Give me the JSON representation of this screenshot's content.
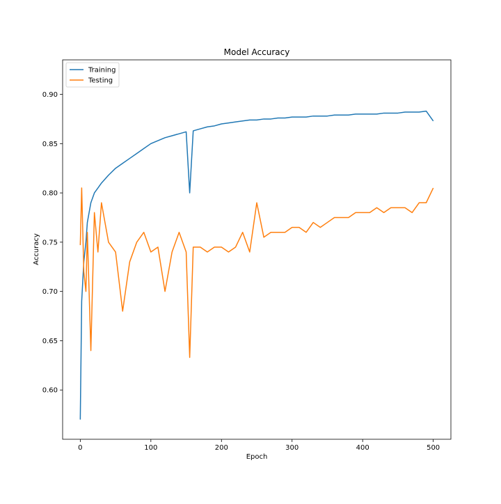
{
  "chart_data": {
    "type": "line",
    "title": "Model Accuracy",
    "xlabel": "Epoch",
    "ylabel": "Accuracy",
    "xlim": [
      -25,
      525
    ],
    "ylim": [
      0.55,
      0.935
    ],
    "xticks": [
      0,
      100,
      200,
      300,
      400,
      500
    ],
    "yticks": [
      0.6,
      0.65,
      0.7,
      0.75,
      0.8,
      0.85,
      0.9
    ],
    "xtick_labels": [
      "0",
      "100",
      "200",
      "300",
      "400",
      "500"
    ],
    "ytick_labels": [
      "0.60",
      "0.65",
      "0.70",
      "0.75",
      "0.80",
      "0.85",
      "0.90"
    ],
    "grid": false,
    "legend_position": "upper-left",
    "series": [
      {
        "name": "Training",
        "color": "#1f77b4",
        "x": [
          0,
          2,
          5,
          8,
          10,
          15,
          20,
          25,
          30,
          40,
          50,
          60,
          70,
          80,
          90,
          100,
          110,
          120,
          130,
          140,
          150,
          155,
          160,
          170,
          180,
          190,
          200,
          210,
          220,
          230,
          240,
          250,
          260,
          270,
          280,
          290,
          300,
          310,
          320,
          330,
          340,
          350,
          360,
          370,
          380,
          390,
          400,
          410,
          420,
          430,
          440,
          450,
          460,
          470,
          480,
          490,
          500
        ],
        "y": [
          0.57,
          0.69,
          0.73,
          0.75,
          0.77,
          0.79,
          0.8,
          0.805,
          0.81,
          0.818,
          0.825,
          0.83,
          0.835,
          0.84,
          0.845,
          0.85,
          0.853,
          0.856,
          0.858,
          0.86,
          0.862,
          0.8,
          0.863,
          0.865,
          0.867,
          0.868,
          0.87,
          0.871,
          0.872,
          0.873,
          0.874,
          0.874,
          0.875,
          0.875,
          0.876,
          0.876,
          0.877,
          0.877,
          0.877,
          0.878,
          0.878,
          0.878,
          0.879,
          0.879,
          0.879,
          0.88,
          0.88,
          0.88,
          0.88,
          0.881,
          0.881,
          0.881,
          0.882,
          0.882,
          0.882,
          0.883,
          0.873
        ]
      },
      {
        "name": "Testing",
        "color": "#ff7f0e",
        "x": [
          0,
          2,
          5,
          8,
          10,
          15,
          20,
          25,
          30,
          40,
          50,
          60,
          70,
          80,
          90,
          100,
          110,
          120,
          130,
          140,
          150,
          155,
          160,
          170,
          180,
          190,
          200,
          210,
          220,
          230,
          240,
          250,
          260,
          270,
          280,
          290,
          300,
          310,
          320,
          330,
          340,
          350,
          360,
          370,
          380,
          390,
          400,
          410,
          420,
          430,
          440,
          450,
          460,
          470,
          480,
          490,
          500
        ],
        "y": [
          0.747,
          0.805,
          0.72,
          0.7,
          0.76,
          0.64,
          0.78,
          0.74,
          0.79,
          0.75,
          0.74,
          0.68,
          0.73,
          0.75,
          0.76,
          0.74,
          0.745,
          0.7,
          0.74,
          0.76,
          0.74,
          0.633,
          0.745,
          0.745,
          0.74,
          0.745,
          0.745,
          0.74,
          0.745,
          0.76,
          0.74,
          0.79,
          0.755,
          0.76,
          0.76,
          0.76,
          0.765,
          0.765,
          0.76,
          0.77,
          0.765,
          0.77,
          0.775,
          0.775,
          0.775,
          0.78,
          0.78,
          0.78,
          0.785,
          0.78,
          0.785,
          0.785,
          0.785,
          0.78,
          0.79,
          0.79,
          0.805
        ]
      }
    ]
  },
  "legend": {
    "items": [
      {
        "label": "Training",
        "color": "#1f77b4"
      },
      {
        "label": "Testing",
        "color": "#ff7f0e"
      }
    ]
  }
}
